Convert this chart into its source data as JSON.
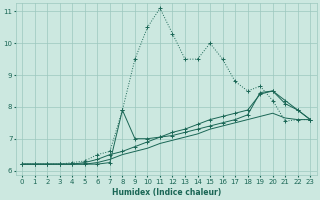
{
  "xlabel": "Humidex (Indice chaleur)",
  "background_color": "#cce8e0",
  "grid_color": "#9cc8be",
  "line_color": "#1a6655",
  "xlim": [
    -0.5,
    23.5
  ],
  "ylim": [
    5.85,
    11.25
  ],
  "yticks": [
    6,
    7,
    8,
    9,
    10,
    11
  ],
  "xticks": [
    0,
    1,
    2,
    3,
    4,
    5,
    6,
    7,
    8,
    9,
    10,
    11,
    12,
    13,
    14,
    15,
    16,
    17,
    18,
    19,
    20,
    21,
    22,
    23
  ],
  "line1_x": [
    0,
    1,
    2,
    3,
    4,
    5,
    6,
    7,
    8,
    9,
    10,
    11,
    12,
    13,
    14,
    15,
    16,
    17,
    18,
    19,
    20,
    21,
    22,
    23
  ],
  "line1_y": [
    6.2,
    6.2,
    6.2,
    6.2,
    6.25,
    6.3,
    6.5,
    6.6,
    7.9,
    9.5,
    10.5,
    11.1,
    10.3,
    9.5,
    9.5,
    10.0,
    9.5,
    8.8,
    8.5,
    8.65,
    8.2,
    7.55,
    7.6,
    7.6
  ],
  "line2_x": [
    0,
    1,
    2,
    3,
    4,
    5,
    6,
    7,
    8,
    9,
    10,
    11,
    12,
    13,
    14,
    15,
    16,
    17,
    18,
    19,
    20,
    21,
    22,
    23
  ],
  "line2_y": [
    6.2,
    6.2,
    6.2,
    6.2,
    6.2,
    6.2,
    6.25,
    6.35,
    6.5,
    6.6,
    6.7,
    6.85,
    6.95,
    7.05,
    7.15,
    7.3,
    7.4,
    7.5,
    7.6,
    7.7,
    7.8,
    7.65,
    7.6,
    7.6
  ],
  "line3_x": [
    0,
    1,
    2,
    3,
    4,
    5,
    6,
    7,
    8,
    9,
    10,
    11,
    12,
    13,
    14,
    15,
    16,
    17,
    18,
    19,
    20,
    21,
    22,
    23
  ],
  "line3_y": [
    6.2,
    6.2,
    6.2,
    6.2,
    6.2,
    6.25,
    6.35,
    6.5,
    6.6,
    6.75,
    6.9,
    7.05,
    7.2,
    7.3,
    7.45,
    7.6,
    7.7,
    7.8,
    7.9,
    8.4,
    8.5,
    8.1,
    7.9,
    7.6
  ],
  "line4_x": [
    0,
    1,
    2,
    3,
    4,
    5,
    6,
    7,
    8,
    9,
    10,
    11,
    12,
    13,
    14,
    15,
    16,
    17,
    18,
    19,
    20,
    21,
    22,
    23
  ],
  "line4_y": [
    6.2,
    6.2,
    6.2,
    6.2,
    6.2,
    6.2,
    6.2,
    6.25,
    7.9,
    7.0,
    7.0,
    7.05,
    7.1,
    7.2,
    7.3,
    7.4,
    7.5,
    7.6,
    7.75,
    8.45,
    8.5,
    8.2,
    7.9,
    7.6
  ]
}
